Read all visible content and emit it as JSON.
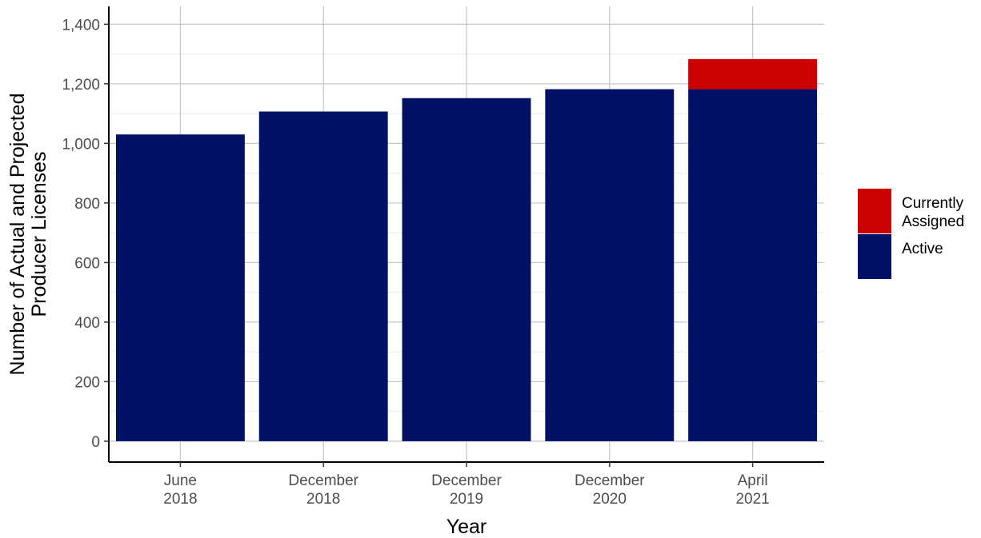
{
  "chart_data": {
    "type": "bar",
    "stacked": true,
    "categories": [
      [
        "June",
        "2018"
      ],
      [
        "December",
        "2018"
      ],
      [
        "December",
        "2019"
      ],
      [
        "December",
        "2020"
      ],
      [
        "April",
        "2021"
      ]
    ],
    "series": [
      {
        "name": "Active",
        "color": "#001166",
        "values": [
          1030,
          1107,
          1152,
          1182,
          1182
        ]
      },
      {
        "name": "Currently Assigned",
        "color": "#cc0000",
        "values": [
          0,
          0,
          0,
          0,
          101
        ]
      }
    ],
    "legend": {
      "placement": "right",
      "order": [
        "Currently Assigned",
        "Active"
      ],
      "labels": {
        "Currently Assigned": [
          "Currently",
          "Assigned"
        ],
        "Active": [
          "Active"
        ]
      }
    },
    "xlabel": "Year",
    "ylabel": [
      "Number of Actual and Projected",
      "Producer Licenses"
    ],
    "ylim": [
      -70,
      1460
    ],
    "yticks": [
      0,
      200,
      400,
      600,
      800,
      1000,
      1200,
      1400
    ],
    "ytick_labels": [
      "0",
      "200",
      "400",
      "600",
      "800",
      "1,000",
      "1,200",
      "1,400"
    ],
    "grid": true
  }
}
